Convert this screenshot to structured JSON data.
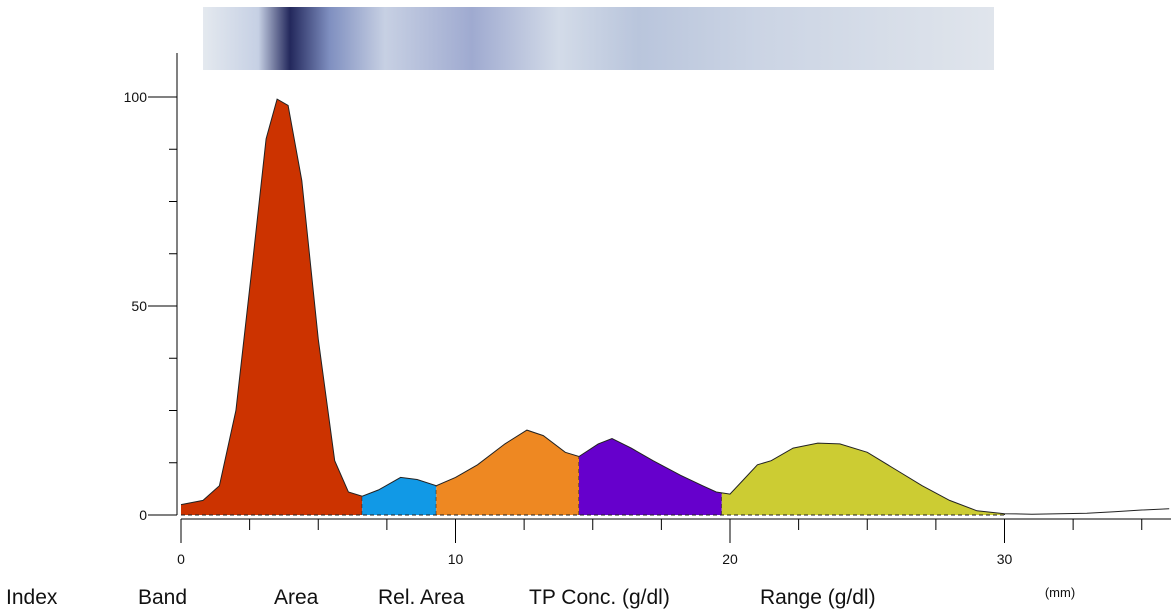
{
  "chart_data": {
    "type": "area",
    "title": "",
    "xlabel": "",
    "ylabel": "",
    "unit_label": "(mm)",
    "xlim": [
      0,
      36
    ],
    "ylim": [
      0,
      105
    ],
    "x_ticks": [
      0,
      10,
      20,
      30
    ],
    "y_ticks": [
      0,
      50,
      100
    ],
    "grid": false,
    "profile": [
      [
        0,
        2.5
      ],
      [
        0.8,
        3.5
      ],
      [
        1.4,
        7
      ],
      [
        2.0,
        25
      ],
      [
        2.6,
        60
      ],
      [
        3.1,
        90
      ],
      [
        3.5,
        99.5
      ],
      [
        3.9,
        98
      ],
      [
        4.4,
        80
      ],
      [
        5.0,
        42
      ],
      [
        5.6,
        13
      ],
      [
        6.1,
        5.5
      ],
      [
        6.6,
        4.5
      ],
      [
        7.2,
        6
      ],
      [
        8.0,
        9
      ],
      [
        8.6,
        8.5
      ],
      [
        9.3,
        7
      ],
      [
        10.0,
        9
      ],
      [
        10.8,
        12
      ],
      [
        11.8,
        17
      ],
      [
        12.6,
        20.3
      ],
      [
        13.2,
        19
      ],
      [
        14.0,
        15
      ],
      [
        14.5,
        14
      ],
      [
        15.2,
        17
      ],
      [
        15.7,
        18.3
      ],
      [
        16.4,
        16
      ],
      [
        17.2,
        13
      ],
      [
        18.2,
        9.5
      ],
      [
        19.0,
        7
      ],
      [
        19.5,
        5.5
      ],
      [
        20.0,
        5
      ],
      [
        20.5,
        8.5
      ],
      [
        21.0,
        12
      ],
      [
        21.5,
        13
      ],
      [
        22.3,
        16
      ],
      [
        23.2,
        17.2
      ],
      [
        24.0,
        17
      ],
      [
        25.0,
        15
      ],
      [
        26.0,
        11
      ],
      [
        27.0,
        7
      ],
      [
        28.0,
        3.5
      ],
      [
        29.0,
        1
      ],
      [
        30.0,
        0.3
      ],
      [
        31.0,
        0.2
      ],
      [
        32.0,
        0.3
      ],
      [
        33.0,
        0.4
      ],
      [
        34.0,
        0.8
      ],
      [
        35.0,
        1.2
      ],
      [
        36.0,
        1.5
      ]
    ],
    "bands": [
      {
        "from": 0,
        "to": 6.6,
        "color": "#cc3300"
      },
      {
        "from": 6.6,
        "to": 9.3,
        "color": "#1199e6"
      },
      {
        "from": 9.3,
        "to": 14.5,
        "color": "#ee8822"
      },
      {
        "from": 14.5,
        "to": 19.7,
        "color": "#6600cc"
      },
      {
        "from": 19.7,
        "to": 30.0,
        "color": "#cccc33"
      }
    ],
    "strip_colors": [
      "#e4e9ef",
      "#c6d0e4",
      "#23285c",
      "#7f8fc0",
      "#c7d0e3",
      "#9faad0",
      "#d3dbe8",
      "#b9c5dc",
      "#cbd4e4",
      "#e0e5ec"
    ]
  },
  "table_headers": [
    "Index",
    "Band",
    "Area",
    "Rel. Area",
    "TP Conc. (g/dl)",
    "Range (g/dl)"
  ]
}
